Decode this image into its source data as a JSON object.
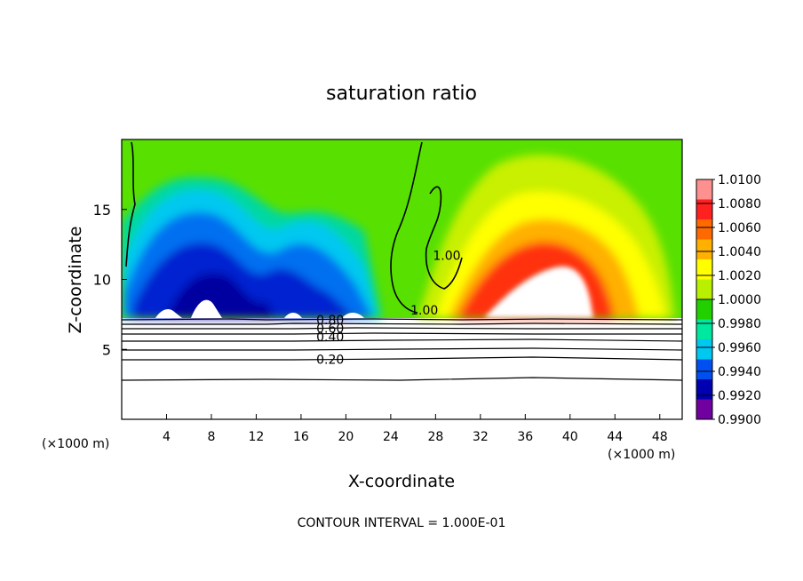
{
  "chart_data": {
    "type": "heatmap",
    "title": "saturation ratio",
    "xlabel": "X-coordinate",
    "ylabel": "Z-coordinate",
    "x_unit_left": "(×1000 m)",
    "x_unit_right": "(×1000 m)",
    "xlim": [
      0,
      50
    ],
    "ylim": [
      0,
      20
    ],
    "x_ticks": [
      4,
      8,
      12,
      16,
      20,
      24,
      28,
      32,
      36,
      40,
      44,
      48
    ],
    "x_tick_labels": [
      "4",
      "8",
      "12",
      "16",
      "20",
      "24",
      "28",
      "32",
      "36",
      "40",
      "44",
      "48"
    ],
    "y_ticks": [
      5,
      10,
      15
    ],
    "y_tick_labels": [
      "5",
      "10",
      "15"
    ],
    "colorbar": {
      "min": 0.99,
      "max": 1.01,
      "labels": [
        "1.0100",
        "1.0080",
        "1.0060",
        "1.0040",
        "1.0020",
        "1.0000",
        "0.9980",
        "0.9960",
        "0.9940",
        "0.9920",
        "0.9900"
      ],
      "levels": [
        1.01,
        1.008,
        1.006,
        1.004,
        1.002,
        1.0,
        0.998,
        0.996,
        0.994,
        0.992,
        0.99
      ],
      "colors": [
        "#ff9090",
        "#ff2020",
        "#ff6a00",
        "#ffb000",
        "#ffff00",
        "#b8f000",
        "#22d000",
        "#00e8a0",
        "#00c8f0",
        "#0050f0",
        "#0000b0",
        "#7000a0"
      ]
    },
    "contour_labels": [
      {
        "text": "0.80",
        "x": 18.6,
        "z": 7.1
      },
      {
        "text": "0.60",
        "x": 18.6,
        "z": 6.5
      },
      {
        "text": "0.40",
        "x": 18.6,
        "z": 5.9
      },
      {
        "text": "0.20",
        "x": 18.6,
        "z": 4.3
      },
      {
        "text": "1.00",
        "x": 29.0,
        "z": 11.7
      },
      {
        "text": "1.00",
        "x": 27.0,
        "z": 7.8
      }
    ],
    "cloud_base_z": 7.3,
    "footer": "CONTOUR INTERVAL = 1.000E-01"
  }
}
